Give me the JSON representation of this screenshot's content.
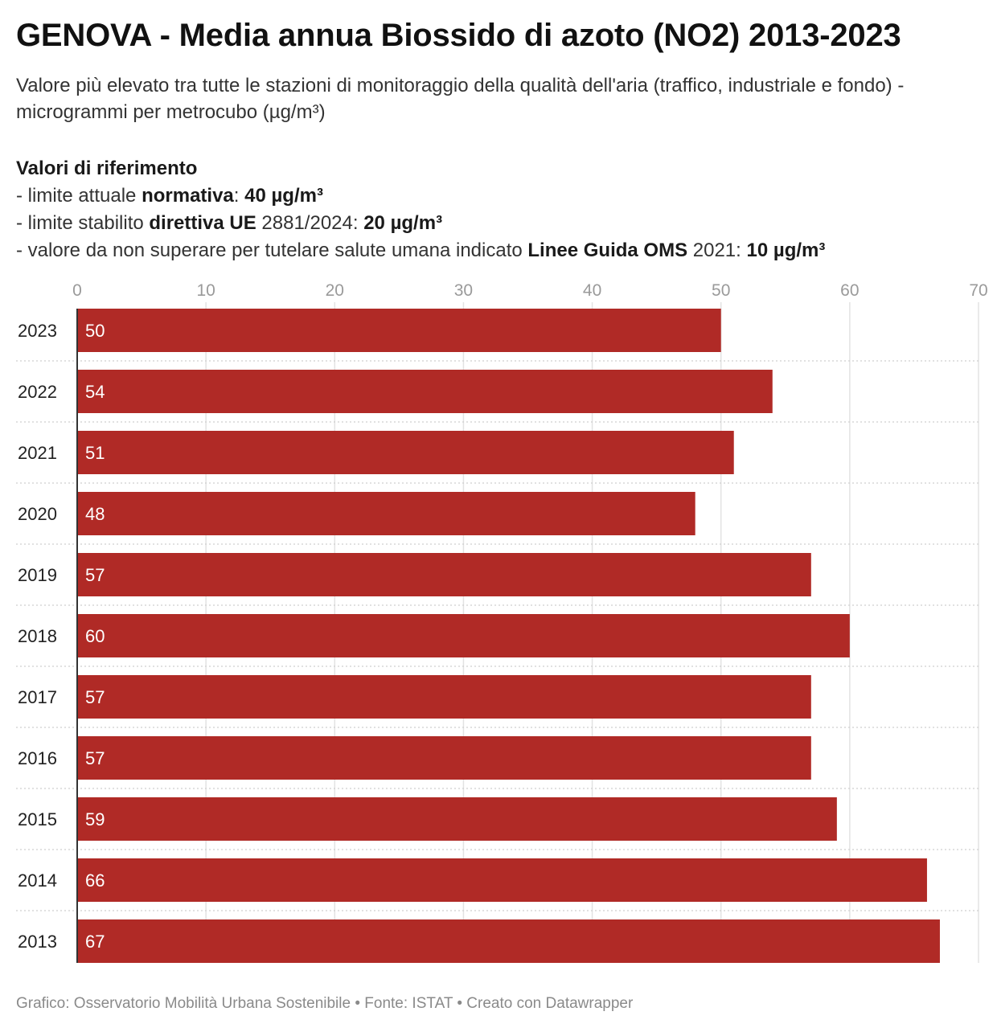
{
  "header": {
    "title": "GENOVA - Media annua Biossido di azoto (NO2) 2013-2023",
    "subtitle": "Valore più elevato tra tutte le stazioni di monitoraggio della qualità dell'aria (traffico, industriale e fondo) - microgrammi per metrocubo (µg/m³)"
  },
  "references": {
    "heading": "Valori di riferimento",
    "line1": {
      "prefix": "- limite attuale ",
      "bold1": "normativa",
      "mid": ": ",
      "bold2": "40 µg/m³"
    },
    "line2": {
      "prefix": "- limite stabilito ",
      "bold1": "direttiva UE",
      "mid": " 2881/2024: ",
      "bold2": "20 µg/m³"
    },
    "line3": {
      "prefix": "- valore da non superare per tutelare salute umana indicato ",
      "bold1": "Linee Guida OMS",
      "mid": " 2021: ",
      "bold2": "10 µg/m³"
    }
  },
  "chart_data": {
    "type": "bar",
    "orientation": "horizontal",
    "categories": [
      "2023",
      "2022",
      "2021",
      "2020",
      "2019",
      "2018",
      "2017",
      "2016",
      "2015",
      "2014",
      "2013"
    ],
    "values": [
      50,
      54,
      51,
      48,
      57,
      60,
      57,
      57,
      59,
      66,
      67
    ],
    "xlim": [
      0,
      70
    ],
    "xticks": [
      0,
      10,
      20,
      30,
      40,
      50,
      60,
      70
    ],
    "grid": true,
    "bar_color": "#b02a26",
    "label_color": "#ffffff"
  },
  "footer": {
    "credit": "Grafico: Osservatorio Mobilità Urbana Sostenibile • Fonte: ISTAT • Creato con Datawrapper"
  }
}
